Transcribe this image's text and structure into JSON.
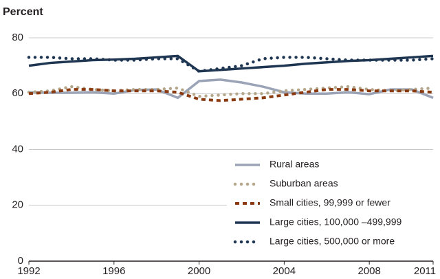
{
  "chart_data": {
    "type": "line",
    "y_label": "Percent",
    "x": [
      1992,
      1993,
      1994,
      1995,
      1996,
      1997,
      1998,
      1999,
      2000,
      2001,
      2002,
      2003,
      2004,
      2005,
      2006,
      2007,
      2008,
      2009,
      2010,
      2011
    ],
    "xlim": [
      1992,
      2011
    ],
    "xticks": [
      1992,
      1996,
      2000,
      2004,
      2008,
      2011
    ],
    "ylim": [
      0,
      80
    ],
    "yticks": [
      0,
      20,
      40,
      60,
      80
    ],
    "grid": true,
    "legend": "lower right",
    "series": [
      {
        "name": "Rural areas",
        "color": "#9ba4b6",
        "style": "solid",
        "values": [
          60.5,
          60.3,
          60.3,
          60.5,
          60,
          61.3,
          61.5,
          58.5,
          64.5,
          65,
          64,
          62.5,
          60.5,
          60,
          60,
          60.5,
          59.8,
          61.5,
          61.5,
          58.5
        ]
      },
      {
        "name": "Suburban areas",
        "color": "#b5a78c",
        "style": "dotted",
        "values": [
          60.5,
          61,
          62.5,
          61.5,
          61,
          61.5,
          61.5,
          62,
          59,
          59.5,
          60,
          60,
          61,
          61.5,
          62,
          62.5,
          61.5,
          61,
          61.5,
          62
        ]
      },
      {
        "name": "Small cities, 99,999 or fewer",
        "color": "#8b3a10",
        "style": "dashed",
        "values": [
          60,
          60.5,
          61.5,
          61.5,
          61,
          61,
          61,
          60.5,
          58,
          57.5,
          58,
          58.5,
          59.5,
          60.5,
          61.5,
          61.5,
          61,
          61,
          61,
          60.5
        ]
      },
      {
        "name": "Large cities, 100,000 –499,999",
        "color": "#1f3652",
        "style": "solid",
        "values": [
          70,
          71,
          71.5,
          72,
          72.2,
          72.5,
          73,
          73.5,
          68,
          68.5,
          69,
          69.5,
          70,
          70.7,
          71.2,
          71.7,
          72,
          72.5,
          73,
          73.5
        ]
      },
      {
        "name": "Large cities, 500,000 or more",
        "color": "#1f3652",
        "style": "dotted",
        "values": [
          73,
          73,
          72.5,
          72.5,
          72,
          72,
          72.5,
          72.5,
          68,
          69,
          70,
          72.5,
          73,
          73,
          72.5,
          72,
          72,
          72,
          72,
          72.5
        ]
      }
    ]
  }
}
